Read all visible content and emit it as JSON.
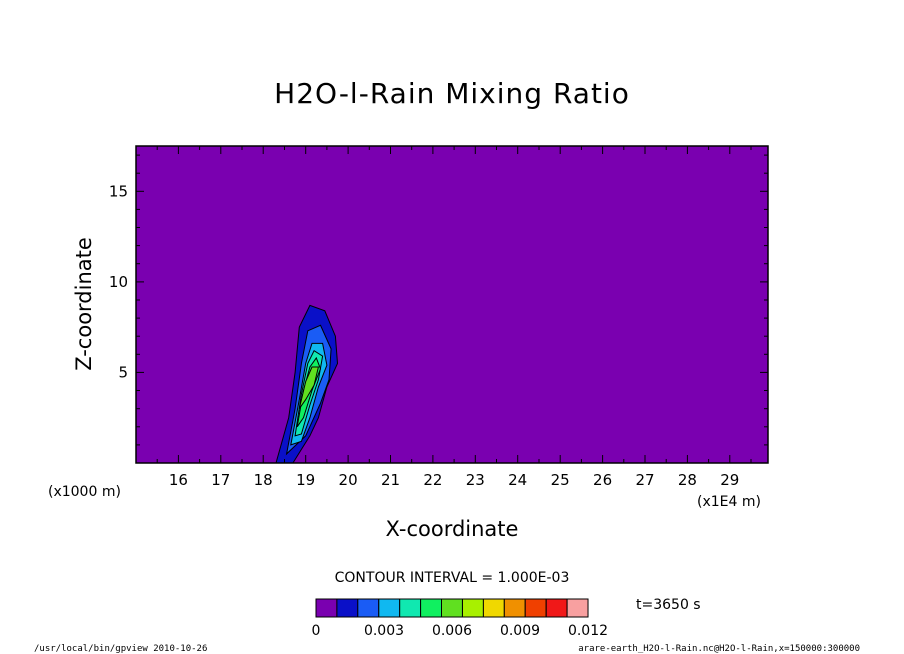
{
  "chart_data": {
    "type": "heatmap",
    "title": "H2O-l-Rain Mixing Ratio",
    "xlabel": "X-coordinate",
    "ylabel": "Z-coordinate",
    "x_unit_left": "(x1000 m)",
    "x_unit_right": "(x1E4 m)",
    "xlim": [
      15.0,
      29.9
    ],
    "ylim": [
      0,
      17.5
    ],
    "x_ticks": [
      16,
      17,
      18,
      19,
      20,
      21,
      22,
      23,
      24,
      25,
      26,
      27,
      28,
      29
    ],
    "y_ticks": [
      5,
      10,
      15
    ],
    "contour_interval": "CONTOUR INTERVAL = 1.000E-03",
    "time": "t=3650 s",
    "colorbar": {
      "colors": [
        "#7a00b0",
        "#0a10c8",
        "#1a5cf5",
        "#10b8f0",
        "#10e8b0",
        "#10f060",
        "#60e020",
        "#a8f000",
        "#f0d800",
        "#f09000",
        "#f04000",
        "#f01818",
        "#f8a0a0"
      ],
      "labels": [
        "0",
        "0.003",
        "0.006",
        "0.009",
        "0.012"
      ],
      "label_values": [
        0,
        0.003,
        0.006,
        0.009,
        0.012
      ],
      "vmin": 0,
      "vmax": 0.012
    },
    "contours": [
      {
        "level": 0.001,
        "color": "#0a10c8",
        "points": [
          [
            18.3,
            0
          ],
          [
            18.6,
            2.5
          ],
          [
            18.75,
            5
          ],
          [
            18.85,
            7.5
          ],
          [
            19.1,
            8.7
          ],
          [
            19.45,
            8.4
          ],
          [
            19.7,
            7
          ],
          [
            19.75,
            5.5
          ],
          [
            19.5,
            4.2
          ],
          [
            19.3,
            2.5
          ],
          [
            19.1,
            1.5
          ],
          [
            18.7,
            0
          ]
        ]
      },
      {
        "level": 0.002,
        "color": "#1a5cf5",
        "points": [
          [
            18.55,
            0.5
          ],
          [
            18.75,
            3
          ],
          [
            18.9,
            5.5
          ],
          [
            19.05,
            7.3
          ],
          [
            19.35,
            7.6
          ],
          [
            19.6,
            6.3
          ],
          [
            19.55,
            4.6
          ],
          [
            19.35,
            3.3
          ],
          [
            19.0,
            1.5
          ]
        ]
      },
      {
        "level": 0.003,
        "color": "#10b8f0",
        "points": [
          [
            18.65,
            1
          ],
          [
            18.85,
            3.5
          ],
          [
            19.0,
            5.5
          ],
          [
            19.15,
            6.6
          ],
          [
            19.4,
            6.6
          ],
          [
            19.5,
            5.4
          ],
          [
            19.3,
            4.2
          ],
          [
            19.1,
            2.5
          ],
          [
            18.9,
            1.2
          ]
        ]
      },
      {
        "level": 0.004,
        "color": "#10e8b0",
        "points": [
          [
            18.75,
            1.5
          ],
          [
            18.9,
            3.8
          ],
          [
            19.05,
            5.5
          ],
          [
            19.2,
            6.2
          ],
          [
            19.4,
            5.9
          ],
          [
            19.3,
            4.6
          ],
          [
            19.1,
            3.2
          ],
          [
            18.9,
            1.6
          ]
        ]
      },
      {
        "level": 0.005,
        "color": "#10f060",
        "points": [
          [
            18.8,
            2
          ],
          [
            18.95,
            4
          ],
          [
            19.1,
            5.3
          ],
          [
            19.25,
            5.8
          ],
          [
            19.35,
            5.2
          ],
          [
            19.15,
            4
          ],
          [
            18.95,
            2.5
          ]
        ]
      },
      {
        "level": 0.006,
        "color": "#60e020",
        "points": [
          [
            18.85,
            3
          ],
          [
            19.0,
            4.5
          ],
          [
            19.15,
            5.3
          ],
          [
            19.3,
            5.3
          ],
          [
            19.2,
            4.3
          ],
          [
            19.0,
            3.5
          ]
        ]
      }
    ],
    "footer_left": "/usr/local/bin/gpview  2010-10-26",
    "footer_right": "arare-earth_H2O-l-Rain.nc@H2O-l-Rain,x=150000:300000"
  }
}
